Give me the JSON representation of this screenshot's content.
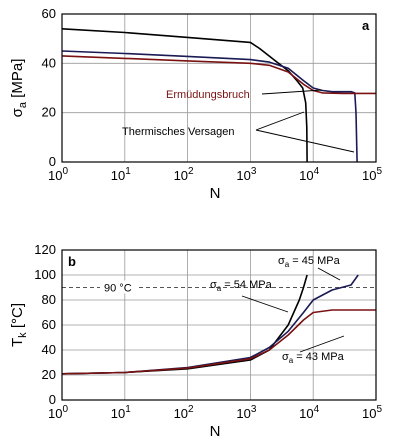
{
  "chart_data": [
    {
      "type": "line",
      "panel": "a",
      "xlabel": "N",
      "ylabel": "σ_a [MPa]",
      "ylabel_main": "σ",
      "ylabel_sub": "a",
      "ylabel_unit": " [MPa]",
      "xscale": "log",
      "xlim": [
        1,
        100000
      ],
      "ylim": [
        0,
        60
      ],
      "xticks": [
        {
          "base": "10",
          "exp": "0",
          "value": 1
        },
        {
          "base": "10",
          "exp": "1",
          "value": 10
        },
        {
          "base": "10",
          "exp": "2",
          "value": 100
        },
        {
          "base": "10",
          "exp": "3",
          "value": 1000
        },
        {
          "base": "10",
          "exp": "4",
          "value": 10000
        },
        {
          "base": "10",
          "exp": "5",
          "value": 100000
        }
      ],
      "yticks": [
        "0",
        "20",
        "40",
        "60"
      ],
      "ytick_values": [
        0,
        20,
        40,
        60
      ],
      "grid": true,
      "annotations": [
        {
          "text": "Ermüdungsbruch",
          "color": "#7a1212"
        },
        {
          "text": "Thermisches Versagen",
          "color": "#000000"
        }
      ],
      "series": [
        {
          "color": "#000000",
          "points": [
            [
              1,
              54
            ],
            [
              10,
              52.5
            ],
            [
              100,
              50.5
            ],
            [
              1000,
              48.5
            ],
            [
              1400,
              46
            ],
            [
              2500,
              41
            ],
            [
              4000,
              37
            ],
            [
              5500,
              33
            ],
            [
              6800,
              30
            ],
            [
              7600,
              24
            ],
            [
              7900,
              14
            ],
            [
              8000,
              0
            ]
          ]
        },
        {
          "color": "#1a1a55",
          "points": [
            [
              1,
              45
            ],
            [
              10,
              44
            ],
            [
              100,
              42.8
            ],
            [
              1000,
              41.5
            ],
            [
              2000,
              40.5
            ],
            [
              4000,
              38
            ],
            [
              7000,
              33
            ],
            [
              10000,
              30
            ],
            [
              14000,
              29
            ],
            [
              20000,
              28.5
            ],
            [
              40000,
              28.5
            ],
            [
              46000,
              28
            ],
            [
              48000,
              20
            ],
            [
              50000,
              0
            ]
          ]
        },
        {
          "color": "#7a1212",
          "points": [
            [
              1,
              43
            ],
            [
              10,
              42
            ],
            [
              100,
              41
            ],
            [
              1000,
              40
            ],
            [
              2000,
              39.2
            ],
            [
              4000,
              36.5
            ],
            [
              7000,
              31.5
            ],
            [
              10000,
              29
            ],
            [
              14000,
              28
            ],
            [
              30000,
              27.8
            ],
            [
              100000,
              27.8
            ]
          ]
        }
      ]
    },
    {
      "type": "line",
      "panel": "b",
      "xlabel": "N",
      "ylabel": "T_k [°C]",
      "ylabel_main": "T",
      "ylabel_sub": "k",
      "ylabel_unit": " [°C]",
      "xscale": "log",
      "xlim": [
        1,
        100000
      ],
      "ylim": [
        0,
        120
      ],
      "xticks": [
        {
          "base": "10",
          "exp": "0",
          "value": 1
        },
        {
          "base": "10",
          "exp": "1",
          "value": 10
        },
        {
          "base": "10",
          "exp": "2",
          "value": 100
        },
        {
          "base": "10",
          "exp": "3",
          "value": 1000
        },
        {
          "base": "10",
          "exp": "4",
          "value": 10000
        },
        {
          "base": "10",
          "exp": "5",
          "value": 100000
        }
      ],
      "yticks": [
        "0",
        "20",
        "40",
        "60",
        "80",
        "100",
        "120"
      ],
      "ytick_values": [
        0,
        20,
        40,
        60,
        80,
        100,
        120
      ],
      "grid": true,
      "reference_line": {
        "label": "90 °C",
        "value": 90
      },
      "annotations": [
        {
          "text": "σ_a = 54 MPa",
          "main": "σ",
          "sub": "a",
          "rest": " = 54 MPa",
          "color": "#000000"
        },
        {
          "text": "σ_a = 45 MPa",
          "main": "σ",
          "sub": "a",
          "rest": " = 45 MPa",
          "color": "#1a1a55"
        },
        {
          "text": "σ_a = 43 MPa",
          "main": "σ",
          "sub": "a",
          "rest": " = 43 MPa",
          "color": "#7a1212"
        }
      ],
      "series": [
        {
          "color": "#000000",
          "points": [
            [
              1,
              21
            ],
            [
              10,
              22
            ],
            [
              100,
              25
            ],
            [
              1000,
              32
            ],
            [
              2000,
              40
            ],
            [
              4000,
              60
            ],
            [
              6000,
              80
            ],
            [
              7000,
              90
            ],
            [
              8000,
              100
            ]
          ]
        },
        {
          "color": "#1a1a55",
          "points": [
            [
              1,
              21
            ],
            [
              10,
              22
            ],
            [
              100,
              26
            ],
            [
              1000,
              34
            ],
            [
              2000,
              42
            ],
            [
              4000,
              55
            ],
            [
              7000,
              70
            ],
            [
              10000,
              80
            ],
            [
              20000,
              88
            ],
            [
              40000,
              92
            ],
            [
              52000,
              100
            ]
          ]
        },
        {
          "color": "#7a1212",
          "points": [
            [
              1,
              21
            ],
            [
              10,
              22
            ],
            [
              100,
              25.5
            ],
            [
              1000,
              33
            ],
            [
              2000,
              40
            ],
            [
              4000,
              52
            ],
            [
              7000,
              64
            ],
            [
              10000,
              70
            ],
            [
              20000,
              72
            ],
            [
              100000,
              72
            ]
          ]
        }
      ]
    }
  ]
}
